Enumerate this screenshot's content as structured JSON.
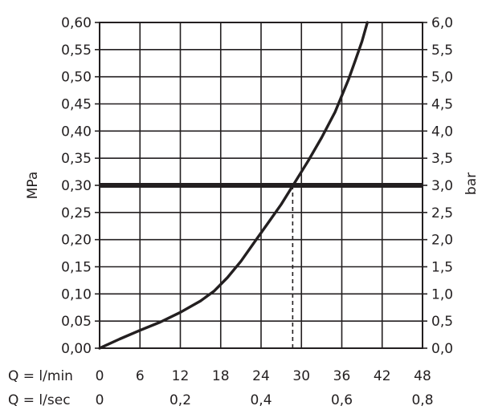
{
  "chart_data": {
    "type": "line",
    "title": "",
    "grid": true,
    "left_axis": {
      "label": "MPa",
      "range": [
        0,
        0.6
      ],
      "ticks": [
        "0,00",
        "0,05",
        "0,10",
        "0,15",
        "0,20",
        "0,25",
        "0,30",
        "0,35",
        "0,40",
        "0,45",
        "0,50",
        "0,55",
        "0,60"
      ]
    },
    "right_axis": {
      "label": "bar",
      "range": [
        0,
        6
      ],
      "ticks": [
        "0,0",
        "0,5",
        "1,0",
        "1,5",
        "2,0",
        "2,5",
        "3,0",
        "3,5",
        "4,0",
        "4,5",
        "5,0",
        "5,5",
        "6,0"
      ]
    },
    "x_axis_lmin": {
      "label": "Q = l/min",
      "range": [
        0,
        48
      ],
      "ticks": [
        "0",
        "6",
        "12",
        "18",
        "24",
        "30",
        "36",
        "42",
        "48"
      ]
    },
    "x_axis_lsec": {
      "label": "Q = l/sec",
      "range": [
        0,
        0.8
      ],
      "ticks": [
        "0",
        "0,2",
        "0,4",
        "0,6",
        "0,8"
      ]
    },
    "series": [
      {
        "x_unit": "l/min",
        "y_unit": "MPa",
        "points": [
          [
            0,
            0
          ],
          [
            3,
            0.017
          ],
          [
            6,
            0.033
          ],
          [
            9,
            0.048
          ],
          [
            12,
            0.066
          ],
          [
            15,
            0.087
          ],
          [
            17,
            0.105
          ],
          [
            19,
            0.13
          ],
          [
            21,
            0.16
          ],
          [
            23,
            0.195
          ],
          [
            25,
            0.23
          ],
          [
            27,
            0.265
          ],
          [
            29,
            0.305
          ],
          [
            31,
            0.345
          ],
          [
            33,
            0.388
          ],
          [
            35,
            0.435
          ],
          [
            36,
            0.465
          ],
          [
            37,
            0.495
          ],
          [
            38,
            0.53
          ],
          [
            39,
            0.565
          ],
          [
            39.8,
            0.6
          ]
        ]
      }
    ],
    "reference_line": {
      "y": 0.3,
      "unit": "MPa"
    },
    "marker": {
      "x": 28.7,
      "y": 0.3,
      "style": "dashed-drop-line"
    }
  }
}
